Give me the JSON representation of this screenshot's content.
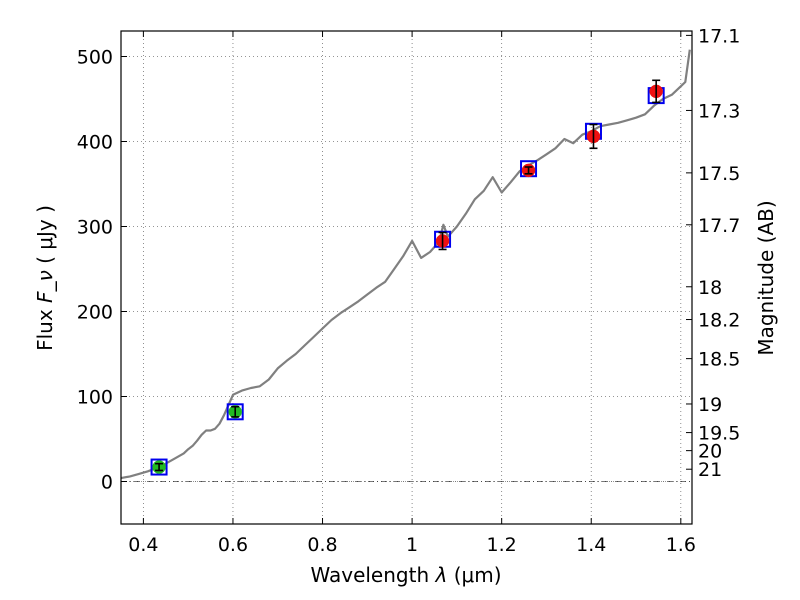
{
  "chart_data": {
    "type": "line",
    "xlabel": "Wavelength",
    "xlabel_symbol": "λ",
    "xlabel_unit": "(μm)",
    "ylabel": "Flux",
    "ylabel_symbol": "F_ν",
    "ylabel_unit": "( μJy )",
    "y2label": "Magnitude (AB)",
    "xlim": [
      0.35,
      1.625
    ],
    "ylim": [
      -50,
      530
    ],
    "grid": true,
    "x_ticks": [
      {
        "value": 0.4,
        "label": "0.4"
      },
      {
        "value": 0.6,
        "label": "0.6"
      },
      {
        "value": 0.8,
        "label": "0.8"
      },
      {
        "value": 1.0,
        "label": "1"
      },
      {
        "value": 1.2,
        "label": "1.2"
      },
      {
        "value": 1.4,
        "label": "1.4"
      },
      {
        "value": 1.6,
        "label": "1.6"
      }
    ],
    "y_ticks": [
      {
        "value": 0,
        "label": "0"
      },
      {
        "value": 100,
        "label": "100"
      },
      {
        "value": 200,
        "label": "200"
      },
      {
        "value": 300,
        "label": "300"
      },
      {
        "value": 400,
        "label": "400"
      },
      {
        "value": 500,
        "label": "500"
      }
    ],
    "mag_ticks": [
      {
        "value": 17.1,
        "label": "17.1"
      },
      {
        "value": 17.3,
        "label": "17.3"
      },
      {
        "value": 17.5,
        "label": "17.5"
      },
      {
        "value": 17.7,
        "label": "17.7"
      },
      {
        "value": 18,
        "label": "18"
      },
      {
        "value": 18.2,
        "label": "18.2"
      },
      {
        "value": 18.5,
        "label": "18.5"
      },
      {
        "value": 19,
        "label": "19"
      },
      {
        "value": 19.5,
        "label": "19.5"
      },
      {
        "value": 20,
        "label": "20"
      },
      {
        "value": 21,
        "label": "21"
      }
    ],
    "spectrum": {
      "color": "#808080",
      "x": [
        0.35,
        0.37,
        0.39,
        0.41,
        0.43,
        0.45,
        0.47,
        0.49,
        0.5,
        0.51,
        0.52,
        0.53,
        0.54,
        0.55,
        0.56,
        0.57,
        0.58,
        0.59,
        0.6,
        0.62,
        0.64,
        0.66,
        0.68,
        0.7,
        0.72,
        0.74,
        0.76,
        0.78,
        0.8,
        0.82,
        0.84,
        0.86,
        0.88,
        0.9,
        0.92,
        0.94,
        0.96,
        0.98,
        1.0,
        1.02,
        1.04,
        1.06,
        1.07,
        1.08,
        1.1,
        1.12,
        1.14,
        1.16,
        1.18,
        1.2,
        1.22,
        1.24,
        1.26,
        1.28,
        1.3,
        1.32,
        1.34,
        1.36,
        1.38,
        1.4,
        1.42,
        1.44,
        1.46,
        1.48,
        1.5,
        1.52,
        1.54,
        1.56,
        1.58,
        1.6,
        1.61,
        1.62
      ],
      "y": [
        4,
        6,
        9,
        12,
        16,
        21,
        27,
        33,
        38,
        42,
        48,
        55,
        60,
        60,
        62,
        68,
        78,
        90,
        102,
        107,
        110,
        112,
        120,
        133,
        142,
        150,
        160,
        170,
        180,
        190,
        198,
        205,
        212,
        220,
        228,
        235,
        250,
        265,
        283,
        263,
        270,
        282,
        302,
        288,
        300,
        315,
        332,
        342,
        358,
        340,
        352,
        365,
        372,
        378,
        385,
        392,
        403,
        398,
        408,
        412,
        418,
        420,
        422,
        425,
        428,
        432,
        442,
        450,
        455,
        465,
        470,
        508
      ]
    },
    "photometry": [
      {
        "x": 0.435,
        "y": 17,
        "err": 4,
        "color": "#22bb22"
      },
      {
        "x": 0.605,
        "y": 82,
        "err": 6,
        "color": "#22bb22"
      },
      {
        "x": 1.068,
        "y": 283,
        "err": 10,
        "color": "#ee1111"
      },
      {
        "x": 1.26,
        "y": 366,
        "err": 4,
        "color": "#ee1111"
      },
      {
        "x": 1.405,
        "y": 406,
        "err": 14,
        "color": "#ee1111"
      },
      {
        "x": 1.545,
        "y": 459,
        "err": 13,
        "color": "#ee1111"
      }
    ],
    "model_points": [
      {
        "x": 0.435,
        "y": 17
      },
      {
        "x": 0.605,
        "y": 82
      },
      {
        "x": 1.068,
        "y": 285
      },
      {
        "x": 1.26,
        "y": 368
      },
      {
        "x": 1.405,
        "y": 412
      },
      {
        "x": 1.545,
        "y": 454
      }
    ],
    "model_color": "#0000ee",
    "frame_color": "#000000"
  }
}
